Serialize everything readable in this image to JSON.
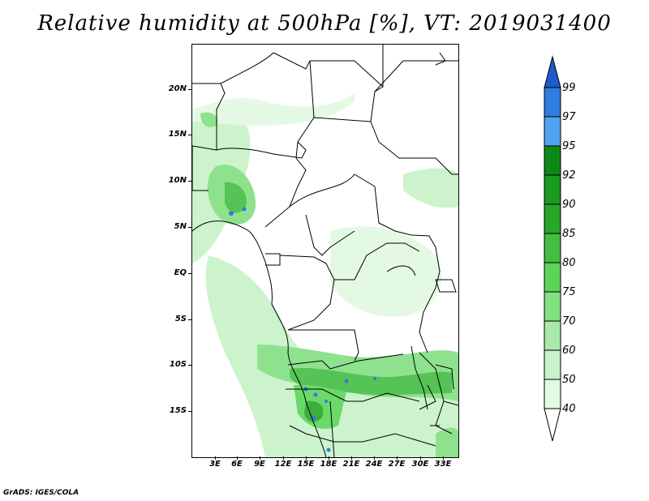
{
  "title": "Relative humidity at 500hPa [%], VT: 2019031400",
  "credit": "GrADS: IGES/COLA",
  "map": {
    "variable": "Relative humidity",
    "level": "500hPa",
    "units": "%",
    "valid_time": "2019031400",
    "lat_labels": [
      "20N",
      "15N",
      "10N",
      "5N",
      "EQ",
      "5S",
      "10S",
      "15S"
    ],
    "lon_labels": [
      "3E",
      "6E",
      "9E",
      "12E",
      "15E",
      "18E",
      "21E",
      "24E",
      "27E",
      "30E",
      "33E"
    ]
  },
  "colorbar": {
    "levels": [
      "99",
      "97",
      "95",
      "92",
      "90",
      "85",
      "80",
      "75",
      "70",
      "60",
      "50",
      "40"
    ],
    "colors": [
      "#1c5cc9",
      "#2e7de0",
      "#4fa3f0",
      "#0a8a14",
      "#27a62a",
      "#43bd43",
      "#5ad55a",
      "#82df82",
      "#a9e9a9",
      "#c8f2c8",
      "#e2f9e2",
      "#f6fff6"
    ]
  }
}
